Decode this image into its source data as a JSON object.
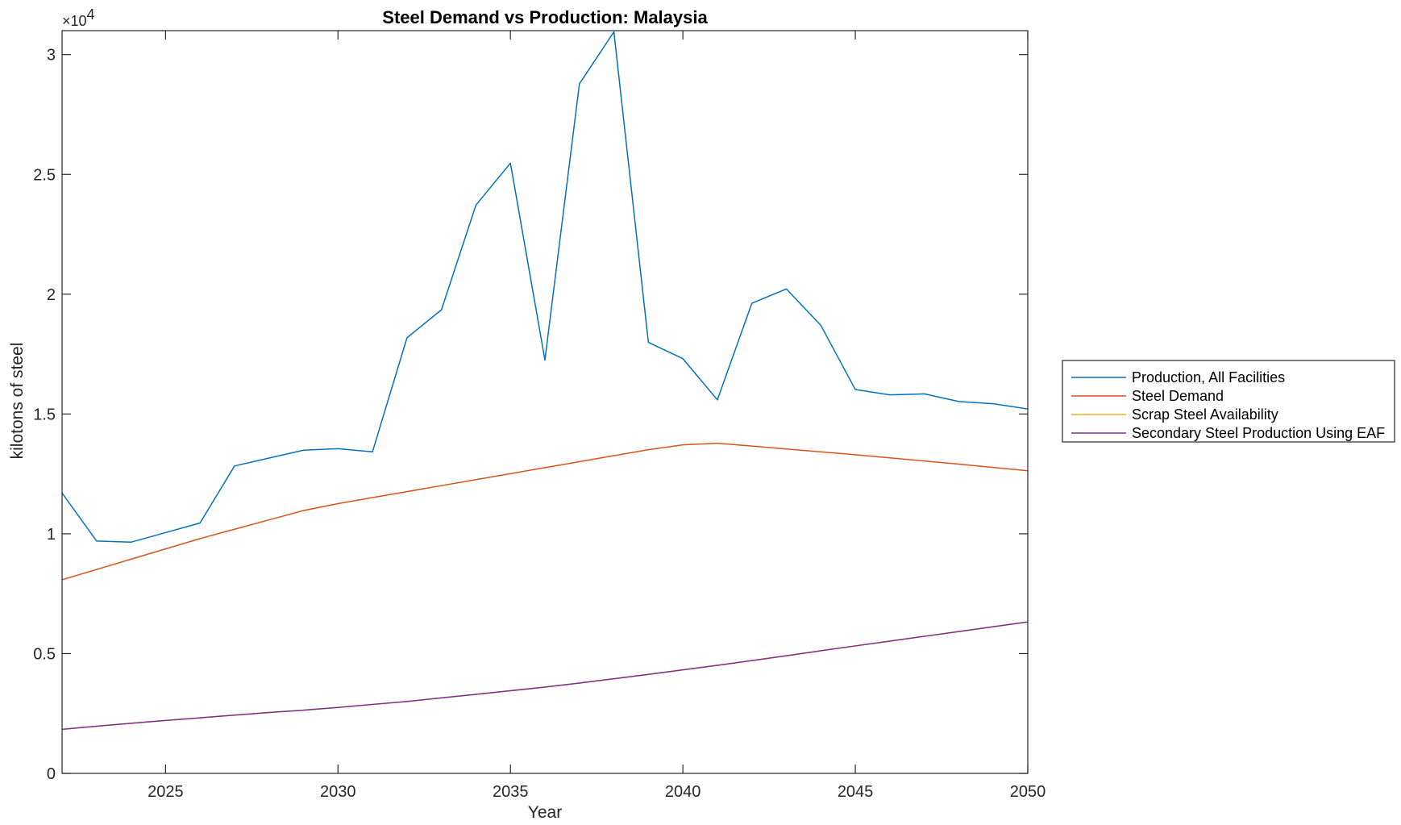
{
  "chart_data": {
    "type": "line",
    "title": "Steel Demand vs Production: Malaysia",
    "xlabel": "Year",
    "ylabel": "kilotons of steel",
    "y_multiplier_base": "×10",
    "y_multiplier_exp": "4",
    "xlim": [
      2022,
      2050
    ],
    "ylim": [
      0,
      3.1
    ],
    "y_scale_note": "values in units of 10^4 kilotons",
    "x_ticks": [
      2025,
      2030,
      2035,
      2040,
      2045,
      2050
    ],
    "x_tick_labels": [
      "2025",
      "2030",
      "2035",
      "2040",
      "2045",
      "2050"
    ],
    "y_ticks": [
      0,
      0.5,
      1,
      1.5,
      2,
      2.5,
      3
    ],
    "y_tick_labels": [
      "0",
      "0.5",
      "1",
      "1.5",
      "2",
      "2.5",
      "3"
    ],
    "grid": false,
    "legend_placement": "outside-right",
    "x": [
      2022,
      2023,
      2024,
      2025,
      2026,
      2027,
      2028,
      2029,
      2030,
      2031,
      2032,
      2033,
      2034,
      2035,
      2036,
      2037,
      2038,
      2039,
      2040,
      2041,
      2042,
      2043,
      2044,
      2045,
      2046,
      2047,
      2048,
      2049,
      2050
    ],
    "series": [
      {
        "name": "Production, All Facilities",
        "color": "#0072BD",
        "values": [
          1.17,
          0.97,
          0.965,
          1.005,
          1.045,
          1.283,
          1.316,
          1.349,
          1.355,
          1.342,
          1.818,
          1.935,
          2.372,
          2.547,
          1.725,
          2.878,
          3.095,
          1.799,
          1.731,
          1.559,
          1.962,
          2.022,
          1.87,
          1.602,
          1.58,
          1.584,
          1.552,
          1.543,
          1.521
        ]
      },
      {
        "name": "Steel Demand",
        "color": "#D95319",
        "values": [
          0.808,
          0.851,
          0.894,
          0.937,
          0.98,
          1.019,
          1.058,
          1.097,
          1.126,
          1.151,
          1.176,
          1.201,
          1.226,
          1.251,
          1.276,
          1.301,
          1.326,
          1.351,
          1.371,
          1.378,
          1.366,
          1.354,
          1.342,
          1.33,
          1.317,
          1.304,
          1.291,
          1.277,
          1.263
        ]
      },
      {
        "name": "Scrap Steel Availability",
        "color": "#EDB120",
        "values": [
          0.184,
          0.197,
          0.209,
          0.221,
          0.232,
          0.243,
          0.254,
          0.264,
          0.275,
          0.288,
          0.3,
          0.315,
          0.33,
          0.345,
          0.36,
          0.377,
          0.395,
          0.413,
          0.432,
          0.451,
          0.471,
          0.491,
          0.512,
          0.532,
          0.552,
          0.572,
          0.592,
          0.612,
          0.632
        ]
      },
      {
        "name": "Secondary Steel Production Using EAF",
        "color": "#7E2F8E",
        "values": [
          0.184,
          0.197,
          0.209,
          0.221,
          0.232,
          0.243,
          0.254,
          0.264,
          0.275,
          0.288,
          0.3,
          0.315,
          0.33,
          0.345,
          0.36,
          0.377,
          0.395,
          0.413,
          0.432,
          0.451,
          0.471,
          0.491,
          0.512,
          0.532,
          0.552,
          0.572,
          0.592,
          0.612,
          0.632
        ]
      }
    ]
  }
}
